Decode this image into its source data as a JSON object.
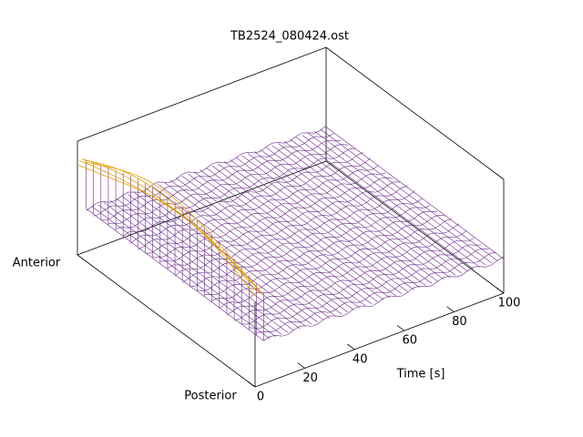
{
  "chart_data": {
    "type": "surface3d",
    "title": "TB2524_080424.ost",
    "xlabel": "Time [s]",
    "ylabels": [
      "Anterior",
      "Posterior"
    ],
    "xlim": [
      0,
      100
    ],
    "xticks": [
      0,
      20,
      40,
      60,
      80,
      100
    ],
    "mesh_color": "#6a2a8a",
    "ridge_color": "#e0a000"
  }
}
